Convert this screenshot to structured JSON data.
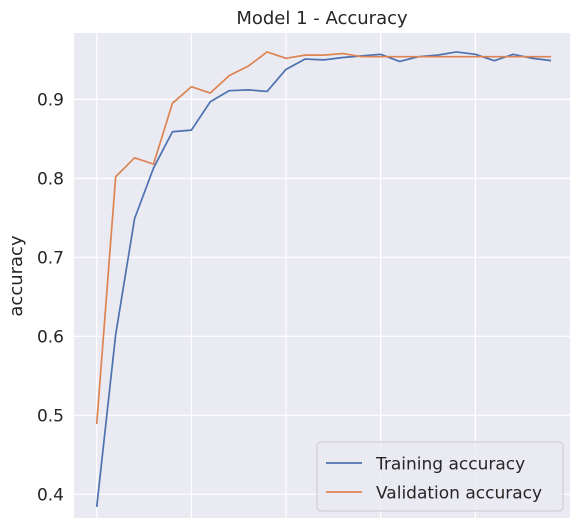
{
  "chart_data": {
    "type": "line",
    "title": "Model 1 - Accuracy",
    "xlabel": "",
    "ylabel": "accuracy",
    "x": [
      0,
      1,
      2,
      3,
      4,
      5,
      6,
      7,
      8,
      9,
      10,
      11,
      12,
      13,
      14,
      15,
      16,
      17,
      18,
      19,
      20,
      21,
      22,
      23,
      24
    ],
    "xlim": [
      -1.2,
      25.0
    ],
    "ylim": [
      0.37,
      0.984
    ],
    "yticks": [
      "0.4",
      "0.5",
      "0.6",
      "0.7",
      "0.8",
      "0.9"
    ],
    "ytick_values": [
      0.4,
      0.5,
      0.6,
      0.7,
      0.8,
      0.9
    ],
    "xgrid_values": [
      0,
      5,
      10,
      15,
      20
    ],
    "grid": true,
    "legend_position": "lower-right",
    "series": [
      {
        "name": "Training accuracy",
        "color": "#4c72b0",
        "values": [
          0.384,
          0.602,
          0.749,
          0.813,
          0.859,
          0.861,
          0.897,
          0.911,
          0.912,
          0.91,
          0.938,
          0.951,
          0.95,
          0.953,
          0.955,
          0.957,
          0.948,
          0.954,
          0.956,
          0.96,
          0.957,
          0.949,
          0.957,
          0.952,
          0.949
        ]
      },
      {
        "name": "Validation accuracy",
        "color": "#dd8452",
        "values": [
          0.489,
          0.802,
          0.826,
          0.818,
          0.895,
          0.916,
          0.908,
          0.93,
          0.942,
          0.96,
          0.952,
          0.956,
          0.956,
          0.958,
          0.954,
          0.954,
          0.954,
          0.954,
          0.954,
          0.954,
          0.954,
          0.954,
          0.954,
          0.954,
          0.954
        ]
      }
    ]
  },
  "colors": {
    "plot_background": "#eaeaf2",
    "grid": "#ffffff",
    "text": "#262626"
  }
}
